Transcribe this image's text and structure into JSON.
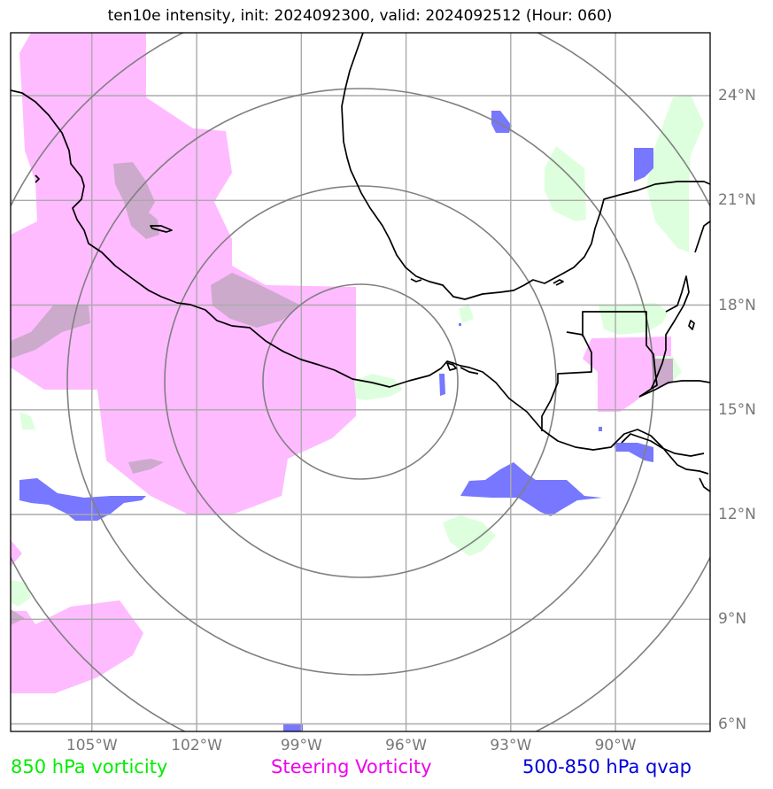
{
  "title": "ten10e intensity, init: 2024092300, valid: 2024092512 (Hour: 060)",
  "lon_labels": [
    "105°W",
    "102°W",
    "99°W",
    "96°W",
    "93°W",
    "90°W"
  ],
  "lat_labels": [
    "24°N",
    "21°N",
    "18°N",
    "15°N",
    "12°N",
    "9°N",
    "6°N"
  ],
  "legend": {
    "vorticity_850": {
      "label": "850 hPa vorticity",
      "color": "#00ee00"
    },
    "steering": {
      "label": "Steering Vorticity",
      "color": "#ee00ee"
    },
    "qvap": {
      "label": "500-850 hPa qvap",
      "color": "#0000dd"
    }
  },
  "colors": {
    "steering_fill": "#ffbbff",
    "vorticity_fill": "#ddffdd",
    "qvap_fill": "#7777ff",
    "overlap_fill": "#ccaacc",
    "grid": "#aaaaaa",
    "range_rings": "#808080",
    "coast": "#000000"
  },
  "storm_center": {
    "lon": -97.2,
    "lat": 15.9
  },
  "map_extent": {
    "lon_min": -107.3,
    "lon_max": -87.2,
    "lat_min": 5.9,
    "lat_max": 25.9
  }
}
